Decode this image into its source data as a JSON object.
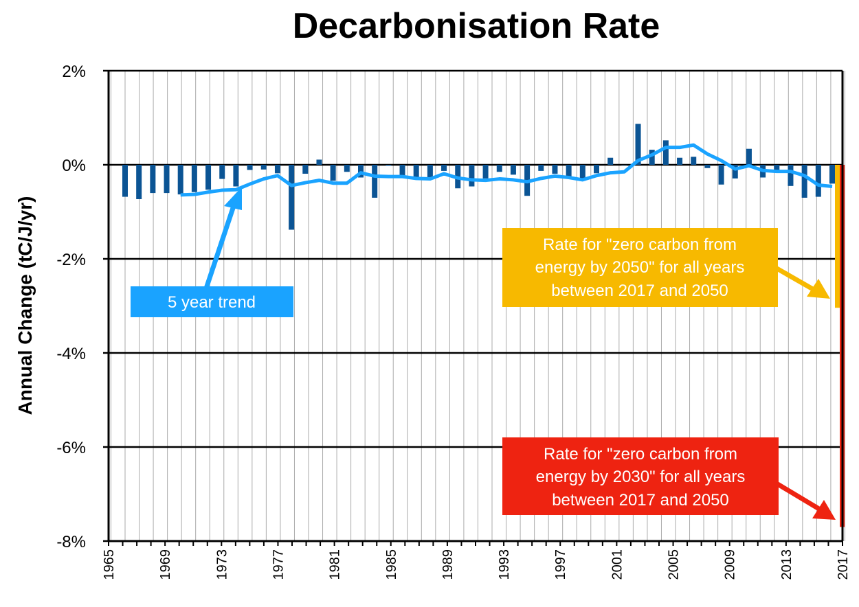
{
  "chart_data": {
    "type": "bar",
    "title": "Decarbonisation Rate",
    "ylabel": "Annual Change (tC/J/yr)",
    "xlabel": "",
    "ylim": [
      -8,
      2
    ],
    "y_ticks": [
      "2%",
      "0%",
      "-2%",
      "-4%",
      "-6%",
      "-8%"
    ],
    "y_tick_values": [
      2,
      0,
      -2,
      -4,
      -6,
      -8
    ],
    "x_ticks": [
      "1965",
      "1969",
      "1973",
      "1977",
      "1981",
      "1985",
      "1989",
      "1993",
      "1997",
      "2001",
      "2005",
      "2009",
      "2013",
      "2017"
    ],
    "grid": "horizontal major lines, vertical line per year",
    "years": [
      1966,
      1967,
      1968,
      1969,
      1970,
      1971,
      1972,
      1973,
      1974,
      1975,
      1976,
      1977,
      1978,
      1979,
      1980,
      1981,
      1982,
      1983,
      1984,
      1985,
      1986,
      1987,
      1988,
      1989,
      1990,
      1991,
      1992,
      1993,
      1994,
      1995,
      1996,
      1997,
      1998,
      1999,
      2000,
      2001,
      2002,
      2003,
      2004,
      2005,
      2006,
      2007,
      2008,
      2009,
      2010,
      2011,
      2012,
      2013,
      2014,
      2015,
      2016,
      2017
    ],
    "series": [
      {
        "kind": "bar",
        "color": "#0b5494",
        "values": [
          -0.68,
          -0.73,
          -0.6,
          -0.6,
          -0.63,
          -0.58,
          -0.53,
          -0.3,
          -0.46,
          -0.11,
          -0.1,
          -0.18,
          -1.38,
          -0.19,
          0.11,
          -0.34,
          -0.15,
          -0.27,
          -0.7,
          -0.02,
          -0.24,
          -0.27,
          -0.27,
          -0.13,
          -0.5,
          -0.46,
          -0.29,
          -0.15,
          -0.21,
          -0.66,
          -0.13,
          -0.19,
          -0.29,
          -0.34,
          -0.18,
          0.15,
          0.0,
          0.87,
          0.32,
          0.52,
          0.15,
          0.17,
          -0.07,
          -0.42,
          -0.29,
          0.34,
          -0.27,
          -0.11,
          -0.45,
          -0.7,
          -0.68,
          -0.4
        ]
      },
      {
        "kind": "line",
        "name": "5 year trend",
        "color": "#1aa3ff",
        "start_year": 1970,
        "values": [
          -0.64,
          -0.63,
          -0.58,
          -0.54,
          -0.53,
          -0.41,
          -0.3,
          -0.23,
          -0.44,
          -0.38,
          -0.33,
          -0.39,
          -0.39,
          -0.17,
          -0.24,
          -0.25,
          -0.25,
          -0.29,
          -0.3,
          -0.19,
          -0.28,
          -0.32,
          -0.33,
          -0.3,
          -0.32,
          -0.36,
          -0.29,
          -0.24,
          -0.27,
          -0.32,
          -0.23,
          -0.17,
          -0.15,
          0.09,
          0.21,
          0.37,
          0.37,
          0.42,
          0.23,
          0.09,
          -0.09,
          -0.02,
          -0.12,
          -0.14,
          -0.14,
          -0.23,
          -0.43,
          -0.46
        ]
      }
    ],
    "targets": [
      {
        "color": "#f7b900",
        "value": -3.04,
        "label_lines": [
          "Rate for \"zero carbon from",
          "energy by 2050\" for all years",
          "between 2017 and 2050"
        ]
      },
      {
        "color": "#ee2311",
        "value": -7.7,
        "label_lines": [
          "Rate for \"zero carbon from",
          "energy by 2030\" for all years",
          "between 2017 and 2050"
        ]
      }
    ],
    "trend_label": "5 year trend"
  }
}
